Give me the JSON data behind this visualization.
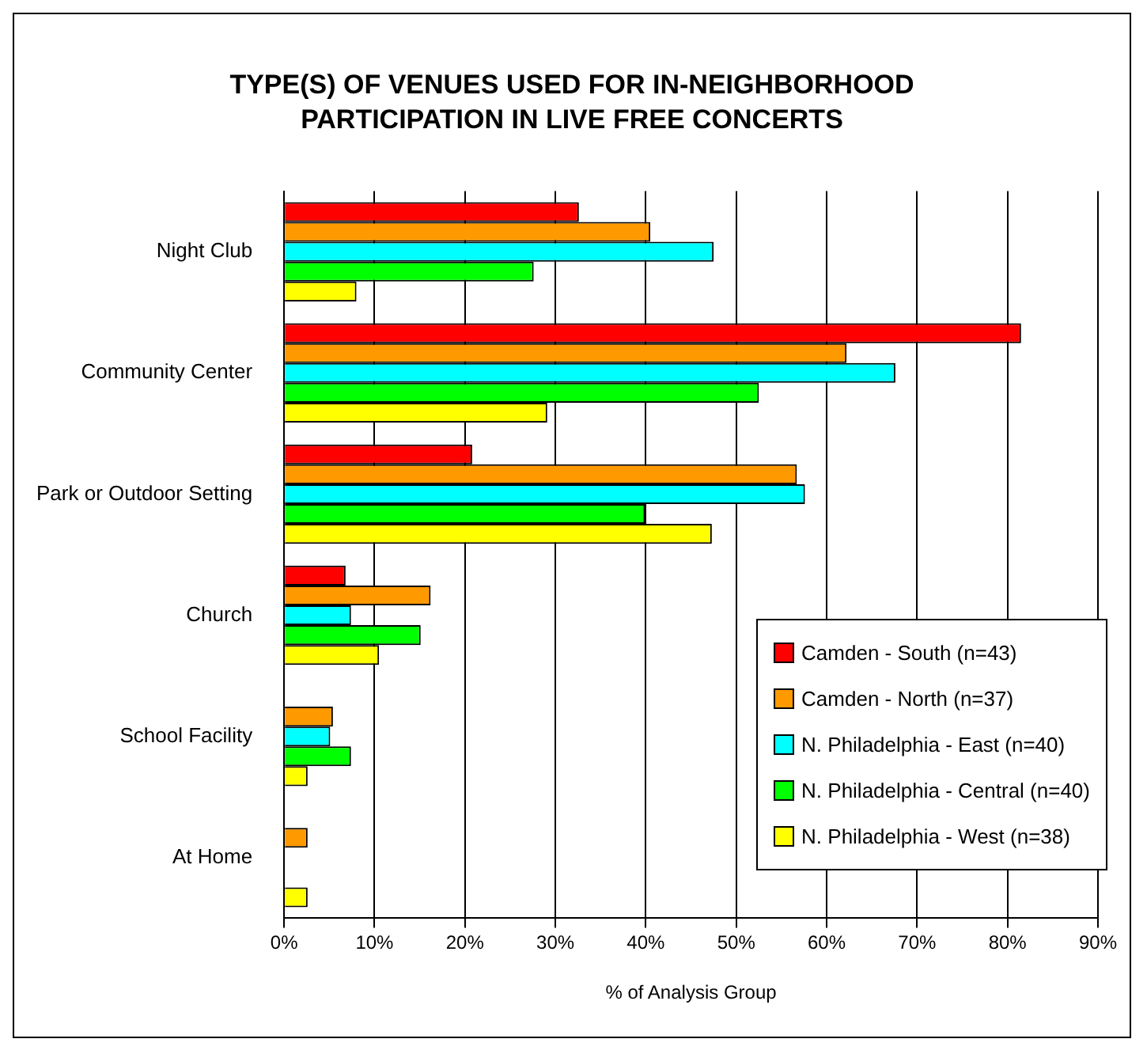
{
  "chart_data": {
    "type": "bar",
    "orientation": "horizontal",
    "title": "TYPE(S) OF VENUES USED FOR IN-NEIGHBORHOOD PARTICIPATION IN LIVE FREE CONCERTS",
    "xlabel": "% of Analysis Group",
    "categories": [
      "Night Club",
      "Community Center",
      "Park or Outdoor Setting",
      "Church",
      "School Facility",
      "At Home"
    ],
    "series": [
      {
        "name": "Camden - South (n=43)",
        "color": "#ff0000",
        "values": [
          32.6,
          81.5,
          20.8,
          6.8,
          null,
          null
        ]
      },
      {
        "name": "Camden - North (n=37)",
        "color": "#ff9900",
        "values": [
          40.5,
          62.2,
          56.7,
          16.2,
          5.4,
          2.6
        ]
      },
      {
        "name": "N. Philadelphia - East (n=40)",
        "color": "#00ffff",
        "values": [
          47.5,
          67.6,
          57.6,
          7.4,
          5.1,
          null
        ]
      },
      {
        "name": "N. Philadelphia - Central (n=40)",
        "color": "#00ff00",
        "values": [
          27.6,
          52.5,
          39.9,
          15.1,
          7.4,
          null
        ]
      },
      {
        "name": "N. Philadelphia - West (n=38)",
        "color": "#ffff00",
        "values": [
          8.0,
          29.1,
          47.3,
          10.5,
          2.6,
          2.6
        ]
      }
    ],
    "xlim": [
      0,
      90
    ],
    "xticks": [
      {
        "value": 0,
        "label": "0%"
      },
      {
        "value": 10,
        "label": "10%"
      },
      {
        "value": 20,
        "label": "20%"
      },
      {
        "value": 30,
        "label": "30%"
      },
      {
        "value": 40,
        "label": "40%"
      },
      {
        "value": 50,
        "label": "50%"
      },
      {
        "value": 60,
        "label": "60%"
      },
      {
        "value": 70,
        "label": "70%"
      },
      {
        "value": 80,
        "label": "80%"
      },
      {
        "value": 90,
        "label": "90%"
      }
    ],
    "grid": "x",
    "legend": "bottom right"
  }
}
